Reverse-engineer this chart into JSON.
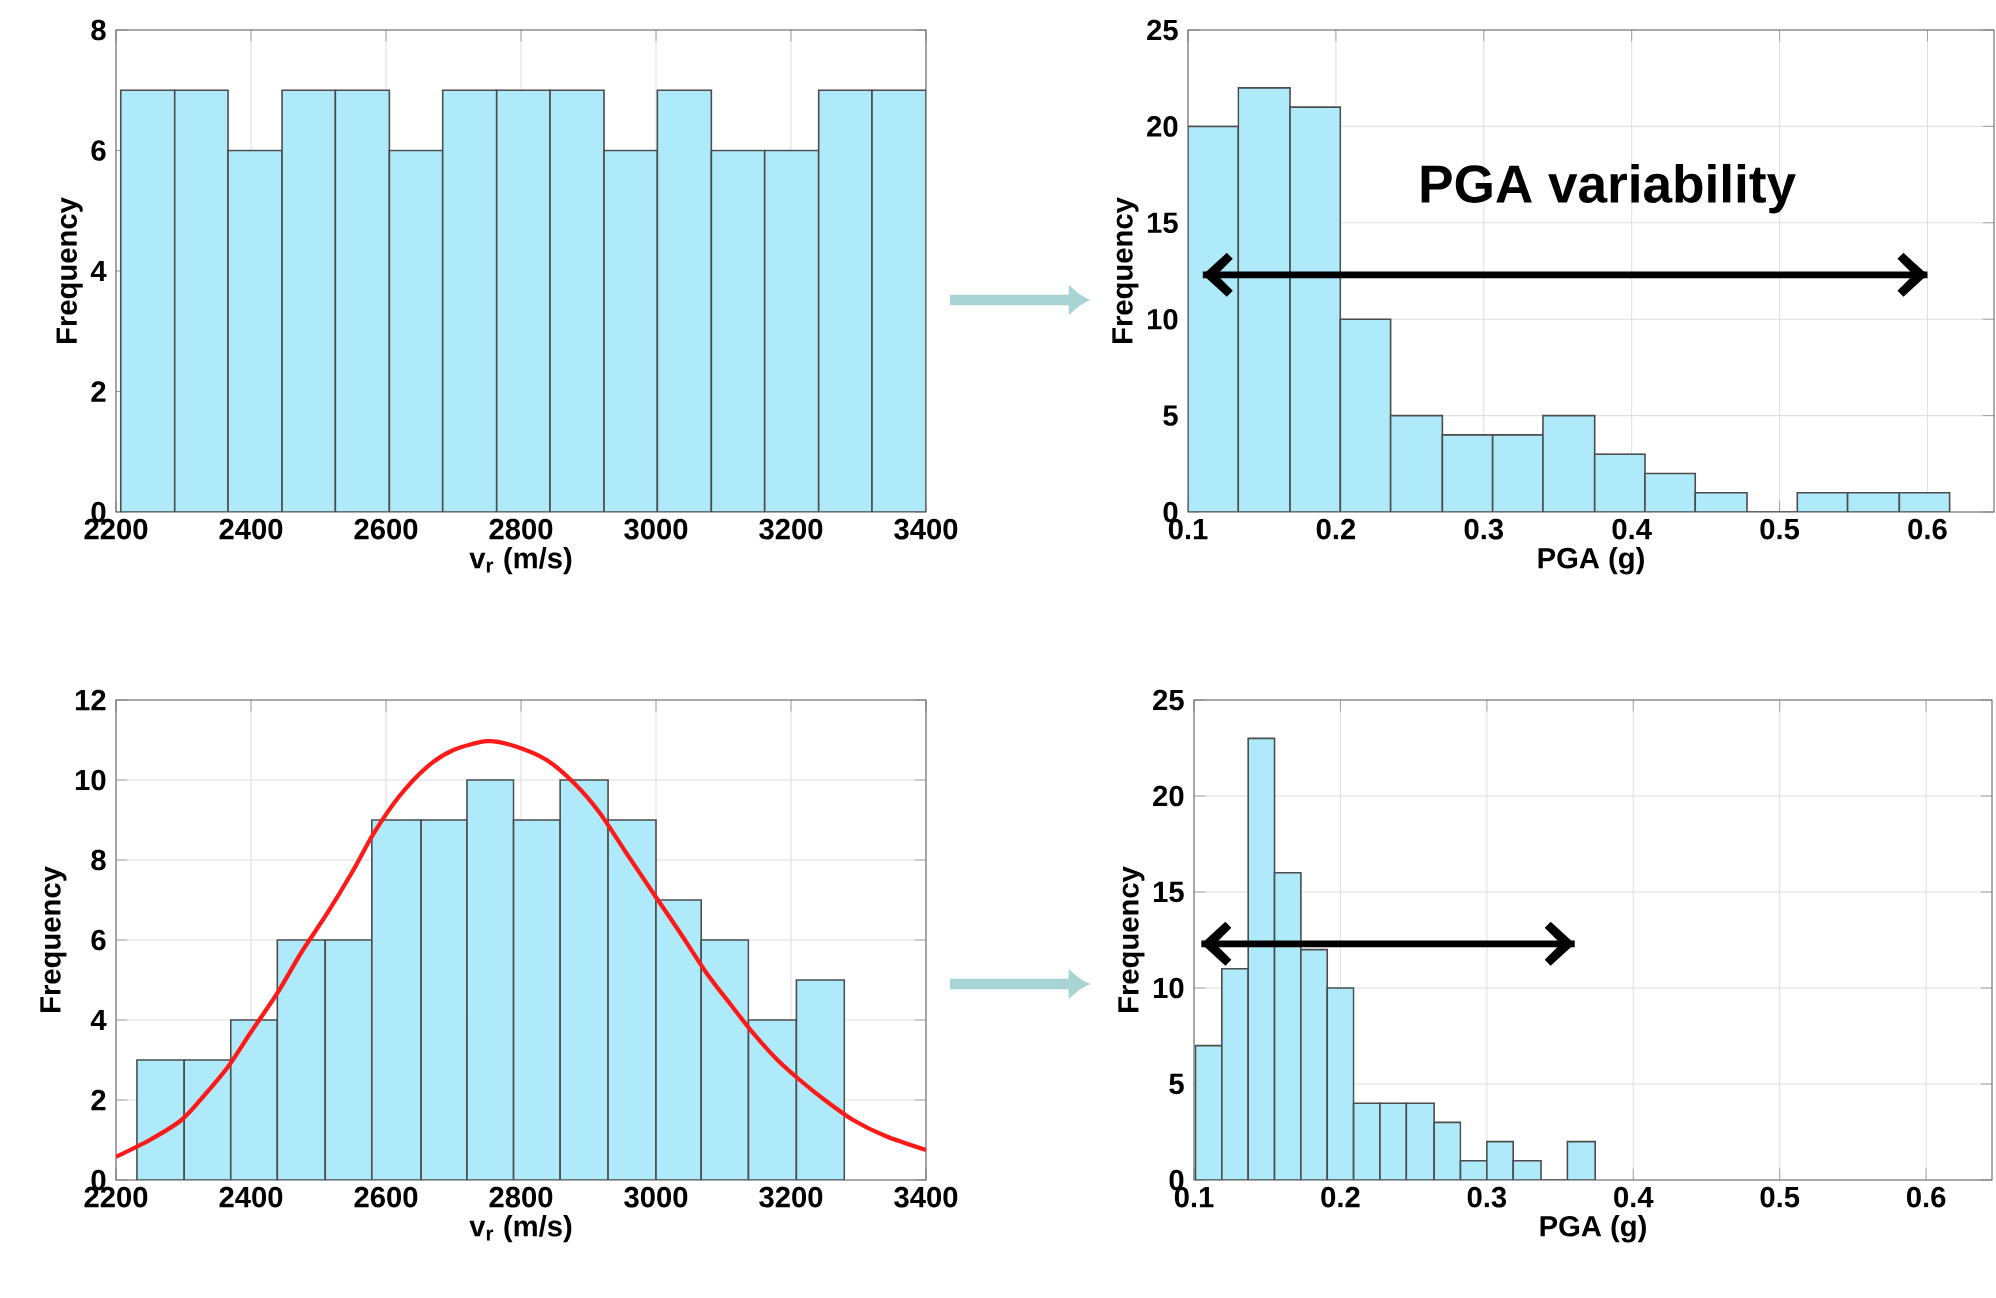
{
  "chart_data": [
    {
      "type": "histogram",
      "xlabel": "v$_{r}$ (m/s)",
      "ylabel": "Frequency",
      "color": "#aeeaf9",
      "bins": [
        2207,
        2287,
        2366,
        2446,
        2525,
        2605,
        2684,
        2764,
        2843,
        2923,
        3002,
        3082,
        3161,
        3241,
        3320,
        3400
      ],
      "values": [
        7,
        7,
        6,
        7,
        7,
        6,
        7,
        7,
        7,
        6,
        7,
        6,
        6,
        7,
        7
      ],
      "xlim": [
        2200,
        3400
      ],
      "ylim": [
        0,
        8
      ],
      "xticks": [
        2200,
        2400,
        2600,
        2800,
        3000,
        3200,
        3400
      ],
      "yticks": [
        0,
        2,
        4,
        6,
        8
      ],
      "grid": true
    },
    {
      "type": "histogram",
      "xlabel": "PGA (g)",
      "ylabel": "Frequency",
      "annotations": [
        "PGA variability"
      ],
      "series": [
        {
          "type": "histogram",
          "color": "#aeeaf9",
          "bins": [
            0.1,
            0.134,
            0.169,
            0.203,
            0.237,
            0.272,
            0.306,
            0.34,
            0.375,
            0.409,
            0.443,
            0.478,
            0.512,
            0.546,
            0.581,
            0.615
          ],
          "values": [
            20,
            22,
            21,
            10,
            5,
            4,
            4,
            5,
            3,
            2,
            1,
            0,
            1,
            1,
            1
          ]
        },
        {
          "type": "line",
          "color": "#000000",
          "x": [
            0.11,
            0.6
          ],
          "values": [
            12.3,
            12.3
          ]
        }
      ],
      "xlim": [
        0.1,
        0.645
      ],
      "ylim": [
        0,
        25
      ],
      "xticks": [
        0.1,
        0.2,
        0.3,
        0.4,
        0.5,
        0.6
      ],
      "yticks": [
        0,
        5,
        10,
        15,
        20,
        25
      ],
      "grid": true
    },
    {
      "type": "histogram",
      "xlabel": "v$_{r}$ (m/s)",
      "ylabel": "Frequency",
      "series": [
        {
          "type": "histogram",
          "color": "#aeeaf9",
          "bins": [
            2231,
            2301,
            2370,
            2439,
            2510,
            2579,
            2652,
            2720,
            2789,
            2858,
            2929,
            3000,
            3067,
            3137,
            3208,
            3279
          ],
          "values": [
            3,
            3,
            4,
            6,
            6,
            9,
            9,
            10,
            9,
            10,
            9,
            7,
            6,
            4,
            5
          ]
        },
        {
          "type": "line",
          "color": "#ff1a1a",
          "x": [
            2200,
            2250,
            2297,
            2330,
            2366,
            2400,
            2439,
            2475,
            2513,
            2550,
            2582,
            2620,
            2661,
            2700,
            2750,
            2790,
            2838,
            2880,
            2917,
            2955,
            2996,
            3035,
            3075,
            3110,
            3144,
            3180,
            3213,
            3250,
            3292,
            3340,
            3400
          ],
          "values": [
            0.58,
            1.0,
            1.5,
            2.1,
            2.83,
            3.7,
            4.67,
            5.7,
            6.67,
            7.7,
            8.67,
            9.6,
            10.33,
            10.75,
            10.97,
            10.85,
            10.5,
            9.9,
            9.17,
            8.2,
            7.17,
            6.2,
            5.17,
            4.4,
            3.67,
            3.0,
            2.5,
            2.0,
            1.5,
            1.1,
            0.75
          ]
        }
      ],
      "xlim": [
        2200,
        3400
      ],
      "ylim": [
        0,
        12
      ],
      "xticks": [
        2200,
        2400,
        2600,
        2800,
        3000,
        3200,
        3400
      ],
      "yticks": [
        0,
        2,
        4,
        6,
        8,
        10,
        12
      ],
      "grid": true
    },
    {
      "type": "histogram",
      "xlabel": "PGA (g)",
      "ylabel": "Frequency",
      "series": [
        {
          "type": "histogram",
          "color": "#aeeaf9",
          "bins": [
            0.101,
            0.119,
            0.137,
            0.155,
            0.173,
            0.191,
            0.209,
            0.227,
            0.245,
            0.264,
            0.282,
            0.3,
            0.318,
            0.337,
            0.355,
            0.374
          ],
          "values": [
            7,
            11,
            23,
            16,
            12,
            10,
            4,
            4,
            4,
            3,
            1,
            2,
            1,
            0,
            2
          ]
        },
        {
          "type": "line",
          "color": "#000000",
          "x": [
            0.105,
            0.36
          ],
          "values": [
            12.3,
            12.3
          ]
        }
      ],
      "xlim": [
        0.1,
        0.645
      ],
      "ylim": [
        0,
        25
      ],
      "xticks": [
        0.1,
        0.2,
        0.3,
        0.4,
        0.5,
        0.6
      ],
      "yticks": [
        0,
        5,
        10,
        15,
        20,
        25
      ],
      "grid": true
    }
  ]
}
